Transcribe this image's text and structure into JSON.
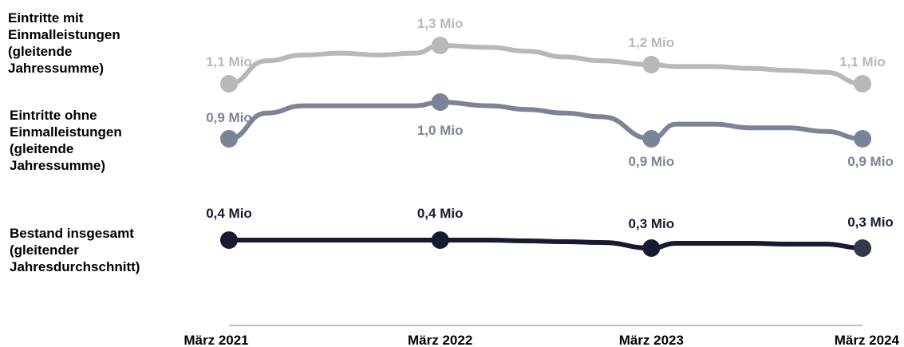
{
  "chart_data": {
    "type": "line",
    "categories": [
      "März 2021",
      "März 2022",
      "März 2023",
      "März 2024"
    ],
    "series": [
      {
        "name": "Eintritte mit\nEinmalleistungen\n(gleitende\nJahressumme)",
        "color": "#b8b8b8",
        "values": [
          1.1,
          1.3,
          1.2,
          1.1
        ],
        "data_labels": [
          "1,1 Mio",
          "1,3 Mio",
          "1,2 Mio",
          "1,1 Mio"
        ],
        "label_side": [
          "above",
          "above",
          "above",
          "above"
        ],
        "intermediate": [
          1.1,
          1.22,
          1.25,
          1.26,
          1.25,
          1.26,
          1.3,
          1.29,
          1.27,
          1.24,
          1.22,
          1.2,
          1.19,
          1.19,
          1.18,
          1.17,
          1.16,
          1.1
        ]
      },
      {
        "name": "Eintritte ohne\nEinmalleistungen\n(gleitende\nJahressumme)",
        "color": "#7b8497",
        "values": [
          0.9,
          1.0,
          0.9,
          0.9
        ],
        "data_labels": [
          "0,9 Mio",
          "1,0 Mio",
          "0,9 Mio",
          "0,9 Mio"
        ],
        "label_side": [
          "above",
          "below",
          "below",
          "below"
        ],
        "intermediate": [
          0.9,
          0.97,
          0.99,
          0.99,
          0.99,
          0.99,
          1.0,
          0.99,
          0.98,
          0.97,
          0.96,
          0.95,
          0.94,
          0.94,
          0.93,
          0.93,
          0.92,
          0.9
        ]
      },
      {
        "name": "Bestand insgesamt\n(gleitender\nJahresdurchschnitt)",
        "color": "#161b33",
        "values": [
          0.4,
          0.4,
          0.3,
          0.3
        ],
        "data_labels": [
          "0,4 Mio",
          "0,4 Mio",
          "0,3 Mio",
          "0,3 Mio"
        ],
        "label_side": [
          "above",
          "above",
          "above",
          "above"
        ],
        "last_marker_color": "#343848",
        "intermediate": [
          0.4,
          0.4,
          0.4,
          0.4,
          0.4,
          0.4,
          0.4,
          0.4,
          0.39,
          0.38,
          0.37,
          0.37,
          0.36,
          0.36,
          0.36,
          0.35,
          0.35,
          0.35
        ]
      }
    ],
    "axis_color": "#9a9a9a"
  }
}
